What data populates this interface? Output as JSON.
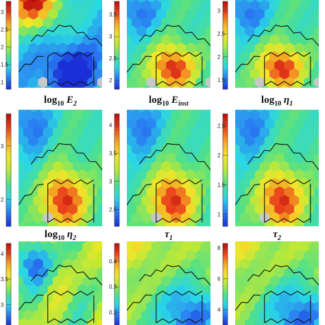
{
  "chart_data": {
    "type": "heatmap",
    "kind": "self-organizing-map component planes (hexagonal)",
    "colorscale": [
      "#1a2fd6",
      "#2a7cf2",
      "#2ad6e6",
      "#4fe08a",
      "#b8e83a",
      "#f2e62a",
      "#f5a623",
      "#e8401c",
      "#b80d0d"
    ],
    "unit_color": "#c8c8c8",
    "boundary_color": "#111111",
    "panels": [
      {
        "title": "",
        "title_parts": [],
        "colorbar_ticks": [
          "1",
          "1.5",
          "2",
          "2.5",
          "3"
        ],
        "vmin": 0.8,
        "vmax": 3.3,
        "pattern": "top-left-hot"
      },
      {
        "title": "",
        "title_parts": [],
        "colorbar_ticks": [
          "2",
          "2.5",
          "3",
          "3.5"
        ],
        "vmin": 1.8,
        "vmax": 3.8,
        "pattern": "center-hot"
      },
      {
        "title": "",
        "title_parts": [],
        "colorbar_ticks": [
          "1.5",
          "2",
          "2.5",
          "3"
        ],
        "vmin": 1.3,
        "vmax": 3.2,
        "pattern": "center-hot"
      },
      {
        "title": "log10 E2",
        "title_parts": [
          "log",
          "10",
          " E",
          "2",
          ""
        ],
        "colorbar_ticks": [
          "2",
          "3"
        ],
        "vmin": 1.5,
        "vmax": 3.6,
        "pattern": "center-hot"
      },
      {
        "title": "log10 Einst",
        "title_parts": [
          "log",
          "10",
          " E",
          "inst",
          ""
        ],
        "colorbar_ticks": [
          "2.5",
          "3",
          "3.5",
          "4"
        ],
        "vmin": 2.2,
        "vmax": 4.2,
        "pattern": "center-hot"
      },
      {
        "title": "log10 η1",
        "title_parts": [
          "log",
          "10",
          " η",
          "1",
          ""
        ],
        "colorbar_ticks": [
          "1",
          "1.5",
          "2",
          "2.5"
        ],
        "vmin": 0.8,
        "vmax": 2.7,
        "pattern": "center-hot"
      },
      {
        "title": "log10 η2",
        "title_parts": [
          "log",
          "10",
          " η",
          "2",
          ""
        ],
        "colorbar_ticks": [
          "3",
          "3.5",
          "4"
        ],
        "vmin": 2.6,
        "vmax": 4.2,
        "pattern": "top-left-cool"
      },
      {
        "title": "τ1",
        "title_parts": [
          "",
          "",
          "τ",
          "1",
          ""
        ],
        "colorbar_ticks": [
          "0.2",
          "0.3",
          "0.4"
        ],
        "vmin": 0.15,
        "vmax": 0.47,
        "pattern": "bottom-right-cool"
      },
      {
        "title": "τ2",
        "title_parts": [
          "",
          "",
          "τ",
          "2",
          ""
        ],
        "colorbar_ticks": [
          "4",
          "6",
          "8"
        ],
        "vmin": 3.0,
        "vmax": 8.3,
        "pattern": "bottom-right-cool"
      }
    ]
  }
}
